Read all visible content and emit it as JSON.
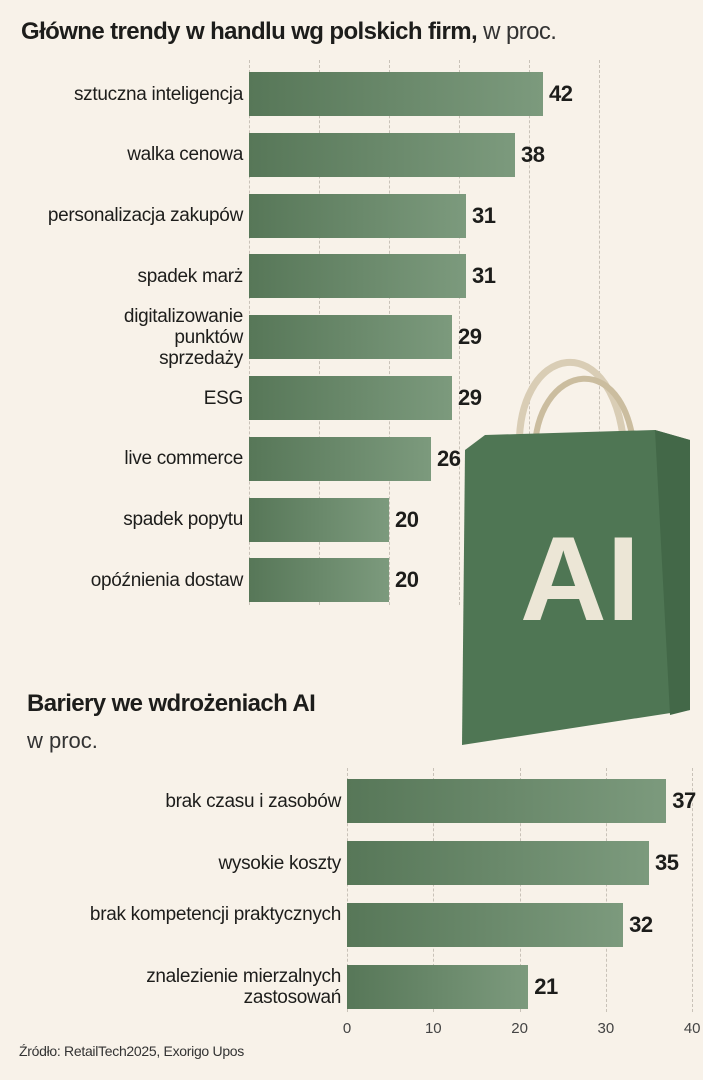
{
  "chart_data": [
    {
      "type": "bar",
      "orientation": "horizontal",
      "title": "Główne trendy w handlu wg polskich firm,",
      "unit": "w proc.",
      "categories": [
        "sztuczna inteligencja",
        "walka cenowa",
        "personalizacja zakupów",
        "spadek marż",
        "digitalizowanie punktów sprzedaży",
        "ESG",
        "live commerce",
        "spadek popytu",
        "opóźnienia dostaw"
      ],
      "values": [
        42,
        38,
        31,
        31,
        29,
        29,
        26,
        20,
        20
      ],
      "xlim": [
        0,
        50
      ],
      "grid": true
    },
    {
      "type": "bar",
      "orientation": "horizontal",
      "title": "Bariery we wdrożeniach AI",
      "unit": "w proc.",
      "categories": [
        "brak czasu i zasobów",
        "wysokie koszty",
        "brak kompetencji praktycznych",
        "znalezienie mierzalnych zastosowań"
      ],
      "values": [
        37,
        35,
        32,
        21
      ],
      "xlim": [
        0,
        40
      ],
      "xticks": [
        "0",
        "10",
        "20",
        "30",
        "40"
      ],
      "grid": true
    }
  ],
  "illustration": {
    "bag_text": "AI",
    "bag_color": "#4f7654"
  },
  "bar_color": "#6a886b",
  "source": "Źródło: RetailTech2025, Exorigo Upos"
}
